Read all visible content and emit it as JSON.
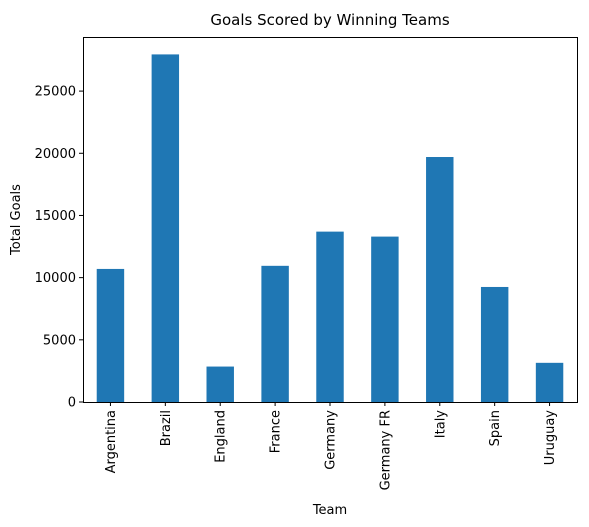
{
  "chart_data": {
    "type": "bar",
    "title": "Goals Scored by Winning Teams",
    "xlabel": "Team",
    "ylabel": "Total Goals",
    "categories": [
      "Argentina",
      "Brazil",
      "England",
      "France",
      "Germany",
      "Germany FR",
      "Italy",
      "Spain",
      "Uruguay"
    ],
    "values": [
      10700,
      27950,
      2850,
      10950,
      13700,
      13300,
      19700,
      9250,
      3150
    ],
    "ylim": [
      0,
      29350
    ],
    "yticks": [
      0,
      5000,
      10000,
      15000,
      20000,
      25000
    ],
    "grid": false,
    "legend": "none",
    "bar_color": "#1f77b4"
  }
}
